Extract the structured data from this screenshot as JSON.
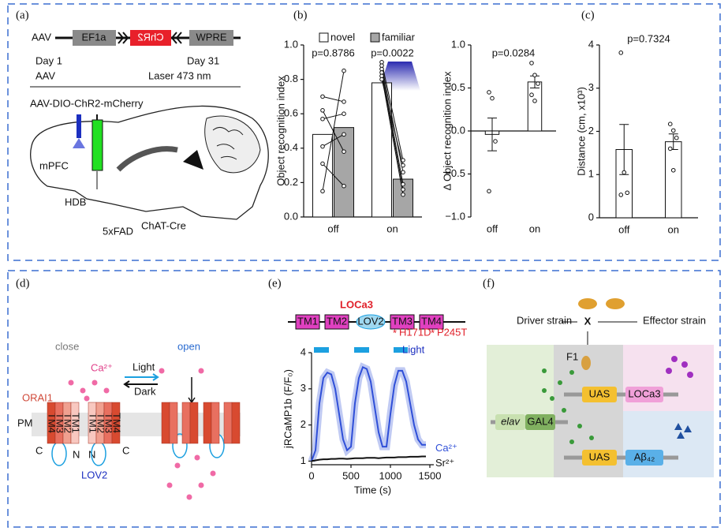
{
  "panels": {
    "a": {
      "label": "(a)",
      "vector": "AAV",
      "promoter": "EF1a",
      "gene": "ChR2",
      "element": "WPRE",
      "day1": "Day 1",
      "day1_event": "AAV",
      "day31": "Day 31",
      "day31_event": "Laser 473 nm",
      "virus": "AAV-DIO-ChR2-mCherry",
      "region1": "mPFC",
      "region2": "HDB",
      "mouse": "5xFAD",
      "mouse_sup": "ChAT-Cre"
    },
    "b": {
      "label": "(b)"
    },
    "c": {
      "label": "(c)"
    },
    "d": {
      "label": "(d)",
      "close": "close",
      "open": "open",
      "ion": "Ca²⁺",
      "light": "Light",
      "dark": "Dark",
      "channel": "ORAI1",
      "membrane": "PM",
      "tm_left": [
        "TM4",
        "TM3",
        "TM2",
        "TM1"
      ],
      "tm_right": [
        "TM1",
        "TM2",
        "TM3",
        "TM4"
      ],
      "termini": [
        "C",
        "N",
        "N",
        "C"
      ],
      "sensor": "LOV2"
    },
    "e": {
      "label": "(e)",
      "construct": "LOCa3",
      "domains": [
        "TM1",
        "TM2",
        "LOV2",
        "TM3",
        "TM4"
      ],
      "mutations": [
        "H171D",
        "P245T"
      ]
    },
    "f": {
      "label": "(f)",
      "driver": "Driver strain",
      "cross": "X",
      "effector": "Effector strain",
      "progeny": "F1",
      "uas1": "UAS",
      "gene1": "LOCa3",
      "promoter": "elav",
      "driver_gene": "GAL4",
      "uas2": "UAS",
      "gene2": "Aβ₄₂"
    }
  },
  "chart_data": [
    {
      "type": "bar",
      "categories": [
        "off",
        "on"
      ],
      "ylabel": "Object recognition index",
      "series": [
        {
          "name": "novel",
          "color": "#ffffff",
          "values": [
            0.48,
            0.78
          ],
          "points": [
            [
              0.15,
              0.31,
              0.41,
              0.57,
              0.62,
              0.7
            ],
            [
              0.9,
              0.88,
              0.86,
              0.84,
              0.82,
              0.8
            ]
          ]
        },
        {
          "name": "familiar",
          "color": "#a6a6a6",
          "values": [
            0.52,
            0.22
          ],
          "points": [
            [
              0.85,
              0.18,
              0.48,
              0.6,
              0.38,
              0.67
            ],
            [
              0.33,
              0.26,
              0.19,
              0.16,
              0.13,
              0.3
            ]
          ]
        }
      ],
      "ylim": [
        0,
        1.0
      ],
      "yticks": [
        {
          "value": 0,
          "label": "0.0"
        },
        0.2,
        0.4,
        0.6,
        0.8,
        {
          "value": 1,
          "label": "1.0"
        }
      ],
      "annotations": [
        "p=0.8786",
        "p=0.0022"
      ]
    },
    {
      "type": "bar",
      "categories": [
        "off",
        "on"
      ],
      "ylabel": "Δ Object recognition index",
      "color": "#ffffff",
      "values": [
        -0.04,
        0.57
      ],
      "errors": [
        0.19,
        0.07
      ],
      "points": [
        [
          0.45,
          0.38,
          -0.12,
          -0.7
        ],
        [
          0.79,
          0.65,
          0.55,
          0.42,
          0.35
        ]
      ],
      "ylim": [
        -1.0,
        1.0
      ],
      "yticks": [
        {
          "value": -1,
          "label": "−1.0"
        },
        {
          "value": -0.5,
          "label": "−0.5"
        },
        {
          "value": 0,
          "label": "0.0"
        },
        0.5,
        {
          "value": 1,
          "label": "1.0"
        }
      ],
      "annotations": [
        "p=0.0284"
      ]
    },
    {
      "type": "bar",
      "categories": [
        "off",
        "on"
      ],
      "ylabel": "Distance (cm, x10³)",
      "color": "#ffffff",
      "values": [
        1.58,
        1.76
      ],
      "errors": [
        0.58,
        0.18
      ],
      "points": [
        [
          3.82,
          1.05,
          0.58,
          0.53
        ],
        [
          2.17,
          2.02,
          1.85,
          1.6,
          1.1
        ]
      ],
      "ylim": [
        0,
        4
      ],
      "yticks": [
        0,
        1,
        2,
        3,
        4
      ],
      "annotations": [
        "p=0.7324"
      ]
    },
    {
      "type": "line",
      "xlabel": "Time (s)",
      "ylabel": "jRCaMP1b (F/F₀)",
      "x": [
        0,
        50,
        100,
        150,
        200,
        250,
        300,
        350,
        400,
        450,
        500,
        550,
        600,
        650,
        700,
        750,
        800,
        850,
        900,
        950,
        1000,
        1050,
        1100,
        1150,
        1200,
        1250,
        1300,
        1350,
        1400,
        1450
      ],
      "series": [
        {
          "name": "Ca²⁺",
          "color": "#2f4fd8",
          "values": [
            1.0,
            1.3,
            2.6,
            3.3,
            3.45,
            3.4,
            3.0,
            2.3,
            1.6,
            1.3,
            1.4,
            2.6,
            3.3,
            3.6,
            3.55,
            3.2,
            2.5,
            1.8,
            1.4,
            1.4,
            2.3,
            3.1,
            3.5,
            3.5,
            3.2,
            2.6,
            2.0,
            1.6,
            1.45,
            1.45
          ]
        },
        {
          "name": "Sr²⁺",
          "color": "#111111",
          "values": [
            1.0,
            1.02,
            1.04,
            1.05,
            1.05,
            1.06,
            1.06,
            1.07,
            1.07,
            1.06,
            1.07,
            1.08,
            1.08,
            1.08,
            1.09,
            1.09,
            1.09,
            1.08,
            1.09,
            1.1,
            1.1,
            1.1,
            1.11,
            1.11,
            1.11,
            1.12,
            1.12,
            1.12,
            1.13,
            1.13
          ]
        }
      ],
      "light": {
        "label": "Light",
        "color": "#1ca0e0",
        "periods": [
          [
            30,
            220
          ],
          [
            540,
            730
          ],
          [
            1040,
            1220
          ]
        ]
      },
      "xlim": [
        0,
        1550
      ],
      "xticks": [
        0,
        500,
        1000,
        1500
      ],
      "ylim": [
        0.9,
        4.0
      ],
      "yticks": [
        1,
        2,
        3,
        4
      ]
    }
  ]
}
